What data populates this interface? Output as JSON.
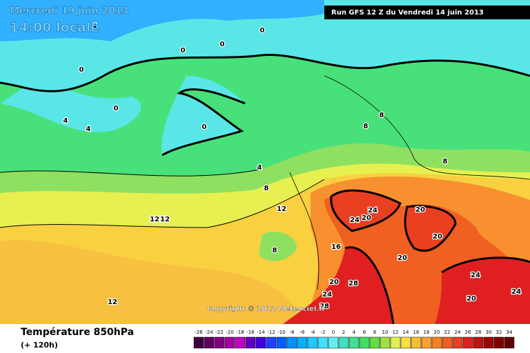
{
  "header": {
    "title": "Mercredi 19 juin 2013",
    "time": "14:00 locale",
    "run": "Run GFS 12 Z du Vendredi 14 juin 2013"
  },
  "copyright": "Copyright © 2012 Meteociel.fr",
  "footer": {
    "title": "Température 850hPa",
    "lead": "(+ 120h)"
  },
  "legend": {
    "labels": [
      -26,
      -24,
      -22,
      -20,
      -18,
      -16,
      -14,
      -12,
      -10,
      -8,
      -6,
      -4,
      -2,
      0,
      2,
      4,
      6,
      8,
      10,
      12,
      14,
      16,
      18,
      20,
      22,
      24,
      26,
      28,
      30,
      32,
      34
    ],
    "colors": [
      "#400040",
      "#600060",
      "#800080",
      "#a000a0",
      "#c000c0",
      "#6000c0",
      "#4000e0",
      "#2040ff",
      "#0060ff",
      "#0090ff",
      "#00b0ff",
      "#20c8ff",
      "#40e0ff",
      "#60f0f0",
      "#40e0c0",
      "#40e090",
      "#40e060",
      "#60e040",
      "#a0e040",
      "#e0f050",
      "#f8e040",
      "#f8c030",
      "#f8a030",
      "#f88020",
      "#f06020",
      "#e84020",
      "#e02020",
      "#c01010",
      "#a00000",
      "#800000",
      "#600000"
    ]
  },
  "contour_labels": [
    4,
    0,
    0,
    0,
    0,
    0,
    4,
    4,
    0,
    4,
    8,
    8,
    8,
    8,
    12,
    12,
    12,
    24,
    24,
    20,
    20,
    20,
    16,
    20,
    20,
    28,
    24,
    28,
    24,
    24,
    20,
    12,
    8
  ]
}
